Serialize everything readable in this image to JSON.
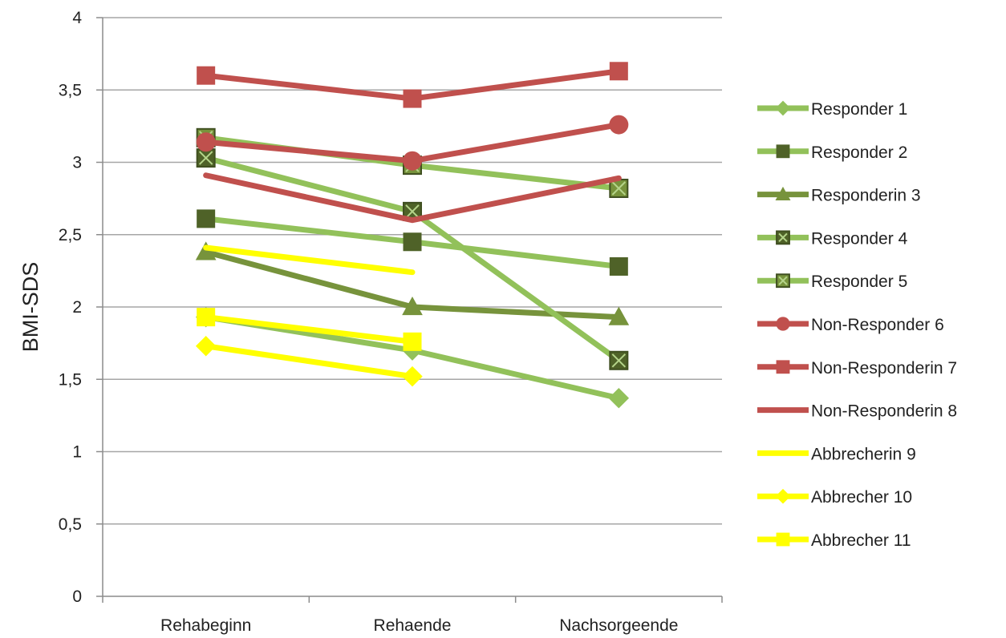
{
  "chart_data": {
    "type": "line",
    "title": "",
    "xlabel": "",
    "ylabel": "BMI-SDS",
    "categories": [
      "Rehabeginn",
      "Rehaende",
      "Nachsorgeende"
    ],
    "ylim": [
      0,
      4
    ],
    "yticks": [
      "0",
      "0,5",
      "1",
      "1,5",
      "2",
      "2,5",
      "3",
      "3,5",
      "4"
    ],
    "yvalues": [
      0,
      0.5,
      1,
      1.5,
      2,
      2.5,
      3,
      3.5,
      4
    ],
    "grid": true,
    "legend_position": "right",
    "series": [
      {
        "name": "Responder 1",
        "values": [
          1.93,
          1.7,
          1.37
        ],
        "color": "#92c15a",
        "marker": "diamond",
        "markerColor": "#92c15a"
      },
      {
        "name": "Responder 2",
        "values": [
          2.61,
          2.45,
          2.28
        ],
        "color": "#92c15a",
        "marker": "square",
        "markerColor": "#4f6228"
      },
      {
        "name": "Responderin 3",
        "values": [
          2.38,
          2.0,
          1.93
        ],
        "color": "#77933c",
        "marker": "triangle",
        "markerColor": "#77933c"
      },
      {
        "name": "Responder 4",
        "values": [
          3.03,
          2.66,
          1.63
        ],
        "color": "#92c15a",
        "marker": "xsquare",
        "markerColor": "#4f6228"
      },
      {
        "name": "Responder 5",
        "values": [
          3.17,
          2.98,
          2.82
        ],
        "color": "#92c15a",
        "marker": "xsquare",
        "markerColor": "#77933c"
      },
      {
        "name": "Non-Responder 6",
        "values": [
          3.14,
          3.01,
          3.26
        ],
        "color": "#c0504d",
        "marker": "circle",
        "markerColor": "#c0504d"
      },
      {
        "name": "Non-Responderin 7",
        "values": [
          3.6,
          3.44,
          3.63
        ],
        "color": "#c0504d",
        "marker": "square",
        "markerColor": "#c0504d"
      },
      {
        "name": "Non-Responderin 8",
        "values": [
          2.91,
          2.6,
          2.89
        ],
        "color": "#c0504d",
        "marker": "none",
        "markerColor": "#c0504d"
      },
      {
        "name": "Abbrecherin 9",
        "values": [
          2.41,
          2.24,
          null
        ],
        "color": "#ffff00",
        "marker": "none",
        "markerColor": "#ffff00"
      },
      {
        "name": "Abbrecher 10",
        "values": [
          1.73,
          1.52,
          null
        ],
        "color": "#ffff00",
        "marker": "diamond",
        "markerColor": "#ffff00"
      },
      {
        "name": "Abbrecher 11",
        "values": [
          1.93,
          1.76,
          null
        ],
        "color": "#ffff00",
        "marker": "square",
        "markerColor": "#ffff00"
      }
    ]
  }
}
